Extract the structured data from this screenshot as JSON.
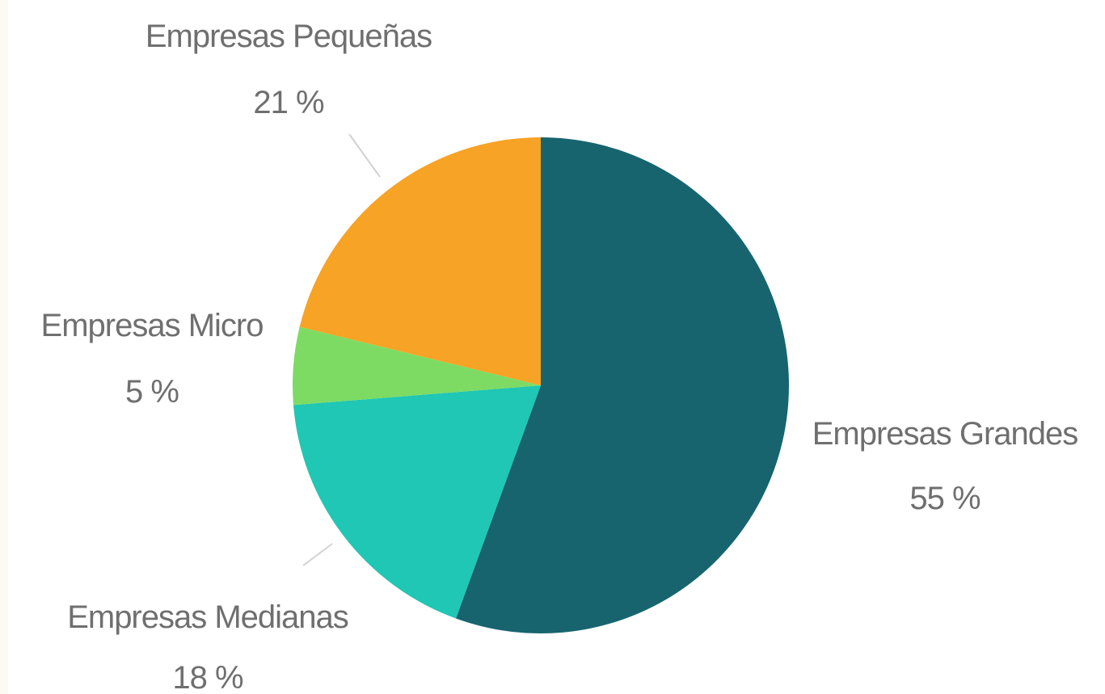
{
  "chart_data": {
    "type": "pie",
    "title": "",
    "start_angle_deg": 0,
    "direction": "clockwise",
    "slices": [
      {
        "name": "Empresas Grandes",
        "value": 55,
        "label": "55 %",
        "color": "#17646f"
      },
      {
        "name": "Empresas Medianas",
        "value": 18,
        "label": "18 %",
        "color": "#1fc7b4"
      },
      {
        "name": "Empresas Micro",
        "value": 5,
        "label": "5 %",
        "color": "#7ddb63"
      },
      {
        "name": "Empresas Pequeñas",
        "value": 21,
        "label": "21 %",
        "color": "#f7a325"
      }
    ],
    "legend": "none",
    "labels": "outside"
  }
}
